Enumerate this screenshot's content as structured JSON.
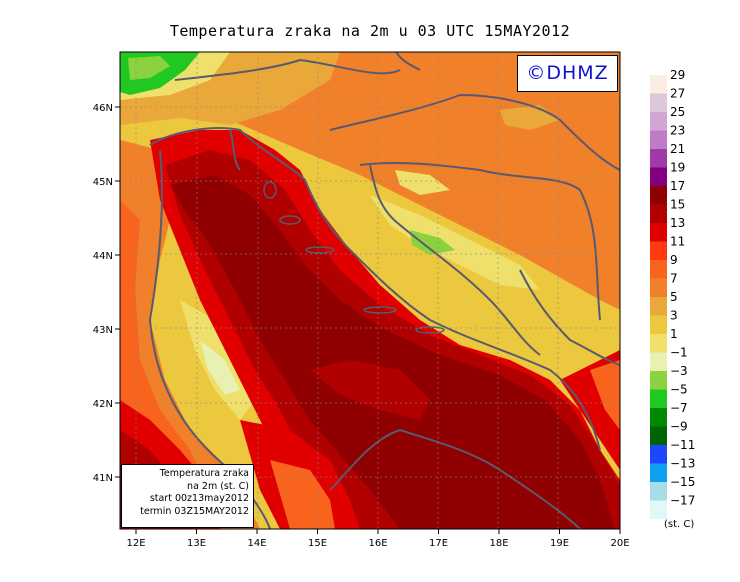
{
  "title": "Temperatura zraka na 2m u 03 UTC 15MAY2012",
  "logo_text": "©DHMZ",
  "info_box": {
    "line1": "Temperatura zraka",
    "line2": "na 2m (st. C)",
    "line3": "start 00z13may2012",
    "line4": "termin 03Z15MAY2012"
  },
  "unit_label": "(st. C)",
  "axes": {
    "lon_ticks": [
      "12E",
      "13E",
      "14E",
      "15E",
      "16E",
      "17E",
      "18E",
      "19E",
      "20E"
    ],
    "lat_ticks": [
      "41N",
      "42N",
      "43N",
      "44N",
      "45N",
      "46N"
    ]
  },
  "legend": {
    "labels": [
      "29",
      "27",
      "25",
      "23",
      "21",
      "19",
      "17",
      "15",
      "13",
      "11",
      "9",
      "7",
      "5",
      "3",
      "1",
      "−1",
      "−3",
      "−5",
      "−7",
      "−9",
      "−11",
      "−13",
      "−15",
      "−17"
    ],
    "colors": [
      "#fbeee0",
      "#dcc8d8",
      "#d0a6d2",
      "#c07bc8",
      "#a03aa8",
      "#800080",
      "#900000",
      "#b00000",
      "#e00000",
      "#ff3a12",
      "#f8641e",
      "#f0802a",
      "#eaa83a",
      "#ecc83e",
      "#eee06a",
      "#e8f0b4",
      "#8ad23e",
      "#22c822",
      "#008a00",
      "#006400",
      "#1e46ff",
      "#10a0f0",
      "#a8dce6",
      "#e0f8f8"
    ]
  },
  "colors": {
    "sea_warm": "#900000",
    "sea_mid": "#c80000",
    "land_orange": "#f0802a",
    "land_yellow": "#ecc83e",
    "land_pale": "#eee06a",
    "cold_green": "#22c822",
    "border_line": "#5a5a6e"
  }
}
